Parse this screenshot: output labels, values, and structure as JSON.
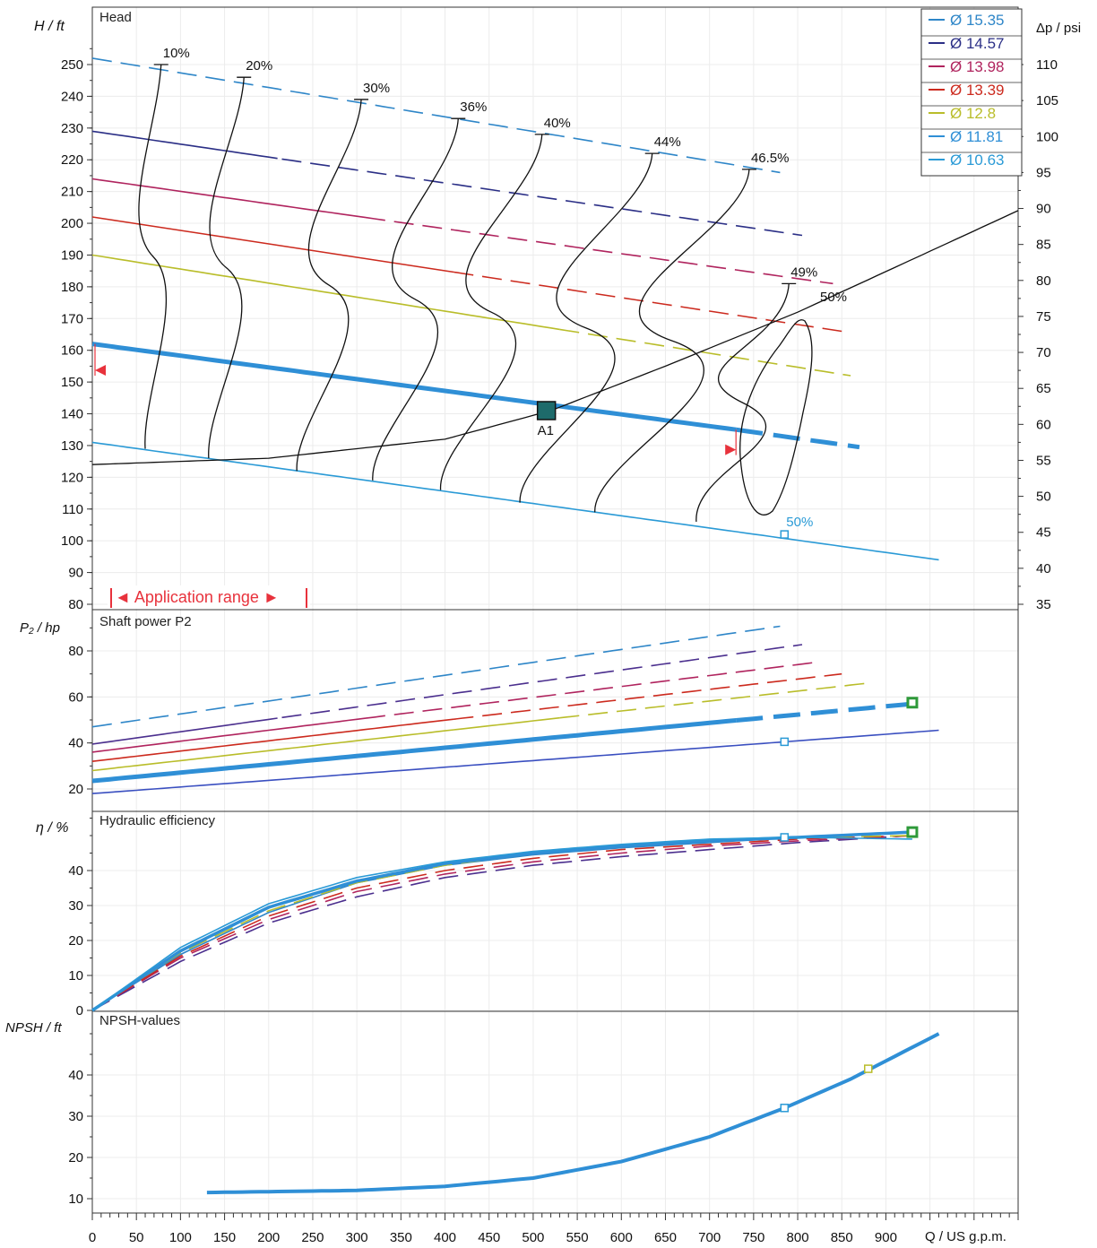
{
  "chart_data": [
    {
      "type": "line",
      "panel": "head",
      "title": "Head",
      "ylabel": "H / ft",
      "y2label": "Δp / psi",
      "ylim": [
        80,
        255
      ],
      "yticks": [
        80,
        90,
        100,
        110,
        120,
        130,
        140,
        150,
        160,
        170,
        180,
        190,
        200,
        210,
        220,
        230,
        240,
        250
      ],
      "y2ticks": [
        35,
        40,
        45,
        50,
        55,
        60,
        65,
        70,
        75,
        80,
        85,
        90,
        95,
        100,
        105,
        110
      ],
      "xlim": [
        0,
        1050
      ],
      "legend_position": "top-right",
      "series": [
        {
          "name": "Ø 15.35",
          "color": "#2e86c8",
          "x": [
            0,
            780
          ],
          "y": [
            252,
            216
          ],
          "solid_until": 0
        },
        {
          "name": "Ø 14.57",
          "color": "#2b2f86",
          "x": [
            0,
            810
          ],
          "y": [
            229,
            196
          ],
          "solid_until": 215
        },
        {
          "name": "Ø 13.98",
          "color": "#b0245e",
          "x": [
            0,
            840
          ],
          "y": [
            214,
            181
          ],
          "solid_until": 310
        },
        {
          "name": "Ø 13.39",
          "color": "#cc2a1e",
          "x": [
            0,
            850
          ],
          "y": [
            202,
            166
          ],
          "solid_until": 410
        },
        {
          "name": "Ø 12.8",
          "color": "#b9bd2a",
          "x": [
            0,
            860
          ],
          "y": [
            190,
            152
          ],
          "solid_until": 530
        },
        {
          "name": "Ø 11.81",
          "color": "#2f8fd6",
          "x": [
            0,
            730,
            870
          ],
          "y": [
            162,
            135,
            129.5
          ],
          "solid_until": 730,
          "bold": true
        },
        {
          "name": "Ø 10.63",
          "color": "#2a9ad6",
          "x": [
            0,
            960
          ],
          "y": [
            131,
            94
          ],
          "solid_until": 960
        }
      ],
      "system_curve": {
        "x": [
          0,
          200,
          400,
          520,
          650,
          800,
          1050
        ],
        "y": [
          124,
          126,
          132,
          141,
          155,
          172,
          204
        ]
      },
      "efficiency_labels": [
        "10%",
        "20%",
        "30%",
        "36%",
        "40%",
        "44%",
        "46.5%",
        "49%",
        "50%"
      ],
      "efficiency_isolines": [
        {
          "label": "10%",
          "top": [
            78,
            250
          ],
          "bottom": [
            60,
            129
          ]
        },
        {
          "label": "20%",
          "top": [
            172,
            246
          ],
          "bottom": [
            132,
            126
          ]
        },
        {
          "label": "30%",
          "top": [
            305,
            239
          ],
          "bottom": [
            232,
            122
          ]
        },
        {
          "label": "36%",
          "top": [
            415,
            233
          ],
          "bottom": [
            318,
            119
          ]
        },
        {
          "label": "40%",
          "top": [
            510,
            228
          ],
          "bottom": [
            395,
            116
          ]
        },
        {
          "label": "44%",
          "top": [
            635,
            222
          ],
          "bottom": [
            485,
            112
          ]
        },
        {
          "label": "46.5%",
          "top": [
            745,
            217
          ],
          "bottom": [
            570,
            109
          ]
        },
        {
          "label": "49%",
          "top": [
            790,
            181
          ],
          "bottom": [
            685,
            106
          ]
        }
      ],
      "iso_50_loop": {
        "label": "50%"
      },
      "duty_point": {
        "label": "A1",
        "x": 515,
        "y": 141
      },
      "marker_50": {
        "label": "50%",
        "x": 785,
        "y": 102
      },
      "annotation": "◄ Application range ►"
    },
    {
      "type": "line",
      "panel": "power",
      "title": "Shaft power P2",
      "ylabel": "P₂ / hp",
      "ylim": [
        12,
        92
      ],
      "yticks": [
        20,
        40,
        60,
        80
      ],
      "series": [
        {
          "name": "Ø 15.35",
          "color": "#2e86c8",
          "x": [
            0,
            785
          ],
          "y": [
            47,
            91
          ]
        },
        {
          "name": "Ø 14.57",
          "color": "#4b2f8e",
          "x": [
            0,
            810
          ],
          "y": [
            39.5,
            83
          ]
        },
        {
          "name": "Ø 13.98",
          "color": "#b0245e",
          "x": [
            0,
            820
          ],
          "y": [
            36,
            75
          ]
        },
        {
          "name": "Ø 13.39",
          "color": "#cc2a1e",
          "x": [
            0,
            850
          ],
          "y": [
            32,
            70
          ]
        },
        {
          "name": "Ø 12.8",
          "color": "#b9bd2a",
          "x": [
            0,
            880
          ],
          "y": [
            28,
            66
          ]
        },
        {
          "name": "Ø 11.81",
          "color": "#2f8fd6",
          "x": [
            0,
            930
          ],
          "y": [
            23.5,
            57
          ]
        },
        {
          "name": "Ø 10.63",
          "color": "#3a4fc0",
          "x": [
            0,
            960
          ],
          "y": [
            18,
            45.5
          ]
        }
      ]
    },
    {
      "type": "line",
      "panel": "efficiency",
      "title": "Hydraulic efficiency",
      "ylabel": "η / %",
      "ylim": [
        0,
        57
      ],
      "yticks": [
        0,
        10,
        20,
        30,
        40
      ],
      "series_x": [
        0,
        100,
        200,
        300,
        400,
        500,
        600,
        700,
        800,
        930
      ],
      "series": [
        {
          "name": "Ø 15.35",
          "color": "#2e86c8",
          "y": [
            0,
            16,
            28,
            36.5,
            41.5,
            44.5,
            46.5,
            48,
            49.5,
            51
          ]
        },
        {
          "name": "Ø 14.57",
          "color": "#4b2f8e",
          "y": [
            0,
            14,
            25,
            32.5,
            38,
            41.5,
            44,
            46,
            48,
            50
          ]
        },
        {
          "name": "Ø 13.98",
          "color": "#b0245e",
          "y": [
            0,
            15,
            26,
            34,
            39,
            42.5,
            45,
            47,
            48.5,
            50
          ]
        },
        {
          "name": "Ø 13.39",
          "color": "#cc2a1e",
          "y": [
            0,
            15.5,
            27,
            35,
            40,
            43.5,
            46,
            47.5,
            49,
            50
          ]
        },
        {
          "name": "Ø 12.8",
          "color": "#b9bd2a",
          "y": [
            0,
            16.5,
            28.5,
            36.5,
            41.5,
            45,
            47,
            48.5,
            49.5,
            50
          ]
        },
        {
          "name": "Ø 11.81",
          "color": "#2f8fd6",
          "y": [
            0,
            17,
            29.5,
            37,
            42,
            45,
            47,
            48.5,
            49.5,
            51
          ]
        },
        {
          "name": "Ø 10.63",
          "color": "#2a9ad6",
          "y": [
            0,
            18,
            30.5,
            38,
            42.5,
            45.5,
            47.5,
            49,
            49.5,
            49
          ]
        }
      ]
    },
    {
      "type": "line",
      "panel": "npsh",
      "title": "NPSH-values",
      "ylabel": "NPSH / ft",
      "ylim": [
        7,
        52
      ],
      "yticks": [
        10,
        20,
        30,
        40
      ],
      "xlabel": "Q / US g.p.m.",
      "xticks": [
        0,
        50,
        100,
        150,
        200,
        250,
        300,
        350,
        400,
        450,
        500,
        550,
        600,
        650,
        700,
        750,
        800,
        850,
        900
      ],
      "series": [
        {
          "name": "Ø 11.81",
          "color": "#2f8fd6",
          "x": [
            130,
            300,
            400,
            500,
            600,
            700,
            785,
            860,
            960
          ],
          "y": [
            11.5,
            12,
            13,
            15,
            19,
            25,
            32,
            39,
            50
          ]
        }
      ]
    }
  ]
}
